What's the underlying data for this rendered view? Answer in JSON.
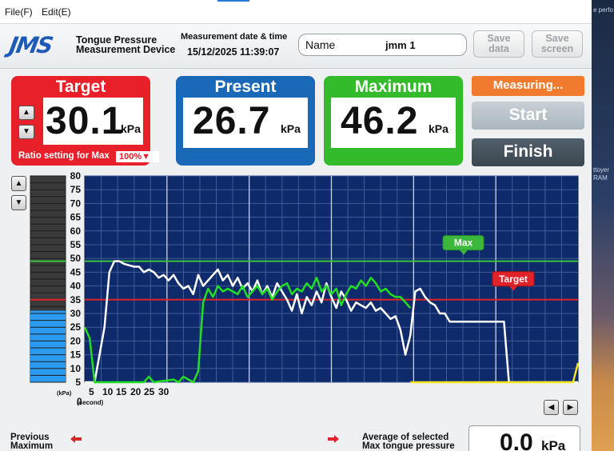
{
  "menu": {
    "file": "File(F)",
    "edit": "Edit(E)"
  },
  "header": {
    "logo": "JMS",
    "device_name_line1": "Tongue Pressure",
    "device_name_line2": "Measurement Device",
    "measurement_label": "Measurement date & time",
    "measurement_value": "15/12/2025 11:39:07",
    "name_label": "Name",
    "name_value": "jmm 1",
    "save_data_line1": "Save",
    "save_data_line2": "data",
    "save_screen_line1": "Save",
    "save_screen_line2": "screen"
  },
  "panels": {
    "target": {
      "title": "Target",
      "value": "30.1",
      "unit": "kPa",
      "ratio_label": "Ratio setting for Max",
      "ratio_value": "100%▼",
      "color": "#e8202a"
    },
    "present": {
      "title": "Present",
      "value": "26.7",
      "unit": "kPa",
      "color": "#1a69b8"
    },
    "maximum": {
      "title": "Maximum",
      "value": "46.2",
      "unit": "kPa",
      "color": "#33bb2b"
    }
  },
  "controls": {
    "status": "Measuring...",
    "start": "Start",
    "finish": "Finish"
  },
  "desktop": {
    "frag1": "e perfo",
    "frag2": "ttoyer",
    "frag3": "RAM"
  },
  "chart_data": {
    "type": "line",
    "y_unit_label": "(kPa)",
    "x_unit_label": "(second)",
    "y_ticks": [
      "80",
      "75",
      "70",
      "65",
      "60",
      "55",
      "50",
      "45",
      "40",
      "35",
      "30",
      "25",
      "20",
      "15",
      "10",
      "5"
    ],
    "x_ticks": [
      "0",
      "5",
      "10",
      "15",
      "20",
      "25",
      "30"
    ],
    "ylim": [
      5,
      80
    ],
    "bar_gauge_fill_kpa": 31,
    "max_line_kpa": 49,
    "target_line_kpa": 35,
    "max_tag": "Max",
    "target_tag": "Target",
    "colors": {
      "background": "#0e2a6b",
      "grid": "#3f5c96",
      "max": "#3cc33c",
      "target": "#e12228",
      "white_series": "#ffffff",
      "green_series": "#22dd22",
      "yellow_series": "#f2e51e",
      "gauge": "#2a9bf0"
    },
    "series": [
      {
        "color": "white",
        "values": [
          [
            0,
            5
          ],
          [
            2,
            5
          ],
          [
            4,
            25
          ],
          [
            5,
            45
          ],
          [
            6,
            49
          ],
          [
            7,
            49
          ],
          [
            8,
            48
          ],
          [
            10,
            47
          ],
          [
            11,
            47
          ],
          [
            12,
            45
          ],
          [
            13,
            46
          ],
          [
            14,
            45
          ],
          [
            15,
            43
          ],
          [
            16,
            44
          ],
          [
            17,
            42
          ],
          [
            18,
            44
          ],
          [
            19,
            41
          ],
          [
            20,
            39
          ],
          [
            21,
            40
          ],
          [
            22,
            37
          ],
          [
            23,
            44
          ],
          [
            24,
            40
          ],
          [
            25,
            42
          ],
          [
            26,
            44
          ],
          [
            27,
            46
          ],
          [
            28,
            42
          ],
          [
            29,
            44
          ],
          [
            30,
            40
          ],
          [
            31,
            43
          ],
          [
            32,
            39
          ],
          [
            33,
            41
          ],
          [
            34,
            38
          ],
          [
            35,
            42
          ],
          [
            36,
            37
          ],
          [
            37,
            40
          ],
          [
            38,
            36
          ],
          [
            39,
            41
          ],
          [
            40,
            38
          ],
          [
            41,
            35
          ],
          [
            42,
            31
          ],
          [
            43,
            37
          ],
          [
            44,
            30
          ],
          [
            45,
            36
          ],
          [
            46,
            33
          ],
          [
            47,
            38
          ],
          [
            48,
            34
          ],
          [
            49,
            41
          ],
          [
            50,
            36
          ],
          [
            51,
            32
          ],
          [
            52,
            38
          ],
          [
            53,
            35
          ],
          [
            54,
            31
          ],
          [
            55,
            34
          ],
          [
            56,
            33
          ],
          [
            57,
            32
          ],
          [
            58,
            34
          ],
          [
            59,
            31
          ],
          [
            60,
            32
          ],
          [
            61,
            30
          ],
          [
            62,
            28
          ],
          [
            63,
            29
          ],
          [
            64,
            24
          ],
          [
            65,
            15
          ],
          [
            66,
            22
          ],
          [
            67,
            38
          ],
          [
            68,
            39
          ],
          [
            69,
            36
          ],
          [
            70,
            34
          ],
          [
            71,
            33
          ],
          [
            72,
            30
          ],
          [
            73,
            30
          ],
          [
            74,
            27
          ],
          [
            75,
            27
          ],
          [
            80,
            27
          ],
          [
            84,
            27
          ],
          [
            85,
            27
          ],
          [
            86,
            5
          ],
          [
            100,
            5
          ]
        ]
      },
      {
        "color": "green",
        "values": [
          [
            0,
            25
          ],
          [
            1,
            21
          ],
          [
            2,
            5
          ],
          [
            3,
            5
          ],
          [
            12,
            5
          ],
          [
            13,
            7
          ],
          [
            14,
            5
          ],
          [
            18,
            6
          ],
          [
            19,
            5
          ],
          [
            20,
            7
          ],
          [
            22,
            5
          ],
          [
            23,
            9
          ],
          [
            24,
            34
          ],
          [
            25,
            39
          ],
          [
            26,
            36
          ],
          [
            27,
            40
          ],
          [
            28,
            38
          ],
          [
            29,
            39
          ],
          [
            30,
            38
          ],
          [
            31,
            37
          ],
          [
            32,
            40
          ],
          [
            33,
            36
          ],
          [
            34,
            38
          ],
          [
            35,
            40
          ],
          [
            36,
            37
          ],
          [
            37,
            39
          ],
          [
            38,
            35
          ],
          [
            39,
            38
          ],
          [
            40,
            40
          ],
          [
            41,
            41
          ],
          [
            42,
            37
          ],
          [
            43,
            39
          ],
          [
            44,
            38
          ],
          [
            45,
            41
          ],
          [
            46,
            39
          ],
          [
            47,
            43
          ],
          [
            48,
            38
          ],
          [
            49,
            40
          ],
          [
            50,
            37
          ],
          [
            51,
            39
          ],
          [
            52,
            33
          ],
          [
            53,
            37
          ],
          [
            54,
            40
          ],
          [
            55,
            39
          ],
          [
            56,
            42
          ],
          [
            57,
            40
          ],
          [
            58,
            43
          ],
          [
            59,
            41
          ],
          [
            60,
            38
          ],
          [
            61,
            39
          ],
          [
            62,
            37
          ],
          [
            63,
            36
          ],
          [
            64,
            36
          ],
          [
            65,
            34
          ],
          [
            66,
            32
          ]
        ]
      },
      {
        "color": "yellow",
        "values": [
          [
            66,
            5
          ],
          [
            99,
            5
          ],
          [
            100,
            12
          ]
        ]
      }
    ]
  },
  "footer": {
    "previous_line1": "Previous",
    "previous_line2": "Maximum",
    "average_line1": "Average of selected",
    "average_line2": "Max tongue pressure",
    "average_value": "0.0",
    "average_unit": "kPa"
  }
}
